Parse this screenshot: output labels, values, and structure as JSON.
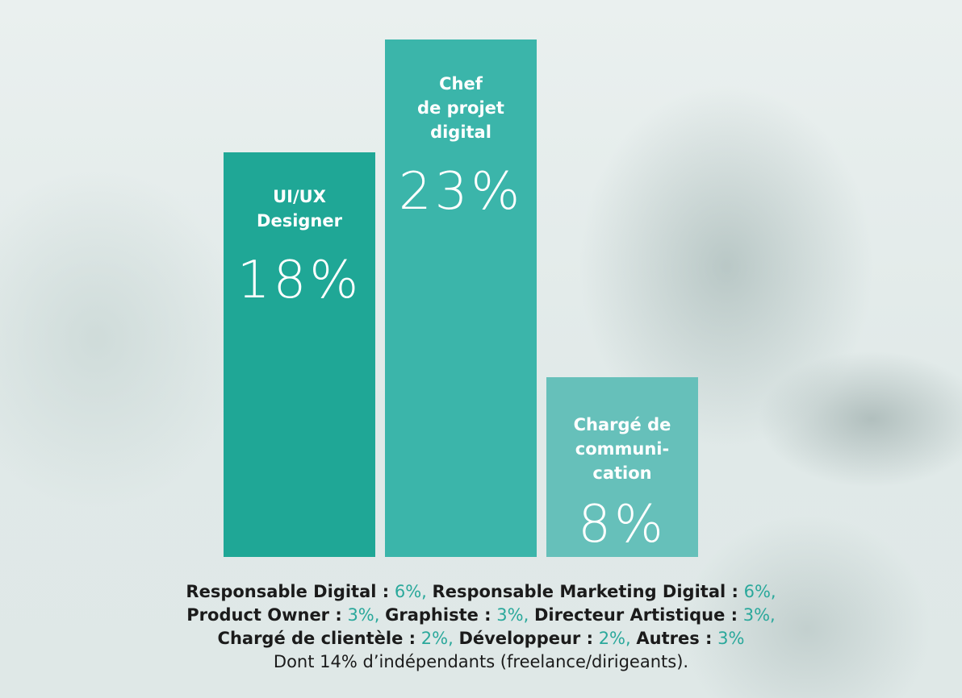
{
  "chart_data": {
    "type": "bar",
    "categories": [
      "UI/UX\nDesigner",
      "Chef\nde projet\ndigital",
      "Chargé de\ncommuni-\ncation"
    ],
    "values": [
      18,
      23,
      8
    ],
    "value_labels": [
      "18%",
      "23%",
      "8%"
    ],
    "colors": [
      "#1fa796",
      "#3bb5aa",
      "#66c0ba"
    ],
    "ylim": [
      0,
      25
    ]
  },
  "footer": {
    "lines": [
      [
        {
          "label": "Responsable Digital :",
          "value": "6%,"
        },
        {
          "label": "Responsable Marketing Digital :",
          "value": "6%,"
        }
      ],
      [
        {
          "label": "Product Owner :",
          "value": "3%,"
        },
        {
          "label": "Graphiste :",
          "value": "3%,"
        },
        {
          "label": "Directeur Artistique :",
          "value": "3%,"
        }
      ],
      [
        {
          "label": "Chargé de clientèle :",
          "value": "2%,"
        },
        {
          "label": "Développeur :",
          "value": "2%,"
        },
        {
          "label": "Autres :",
          "value": "3%"
        }
      ]
    ],
    "note": "Dont 14% d’indépendants (freelance/dirigeants)."
  }
}
